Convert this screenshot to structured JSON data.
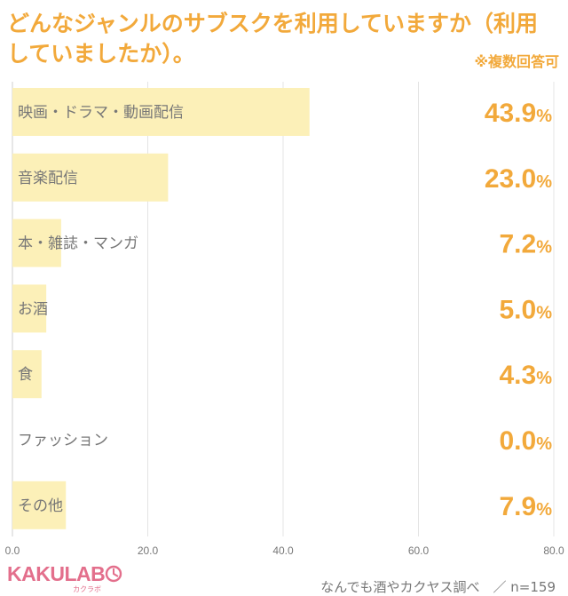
{
  "header": {
    "title": "どんなジャンルのサブスクを利用していますか（利用していましたか）。",
    "note": "※複数回答可"
  },
  "chart_data": {
    "type": "bar",
    "orientation": "horizontal",
    "categories": [
      "映画・ドラマ・動画配信",
      "音楽配信",
      "本・雑誌・マンガ",
      "お酒",
      "食",
      "ファッション",
      "その他"
    ],
    "values": [
      43.9,
      23.0,
      7.2,
      5.0,
      4.3,
      0.0,
      7.9
    ],
    "value_labels": [
      "43.9",
      "23.0",
      "7.2",
      "5.0",
      "4.3",
      "0.0",
      "7.9"
    ],
    "value_unit": "%",
    "xlim": [
      0,
      80
    ],
    "xticks": [
      "0.0",
      "20.0",
      "40.0",
      "60.0",
      "80.0"
    ],
    "xtick_values": [
      0,
      20,
      40,
      60,
      80
    ],
    "grid": true,
    "bar_color": "#fcf0b8",
    "accent_color": "#f2a93b"
  },
  "footer": {
    "brand": "KAKULAB",
    "brand_sub": "カクラボ",
    "source": "なんでも酒やカクヤス調べ　／ n=159"
  }
}
